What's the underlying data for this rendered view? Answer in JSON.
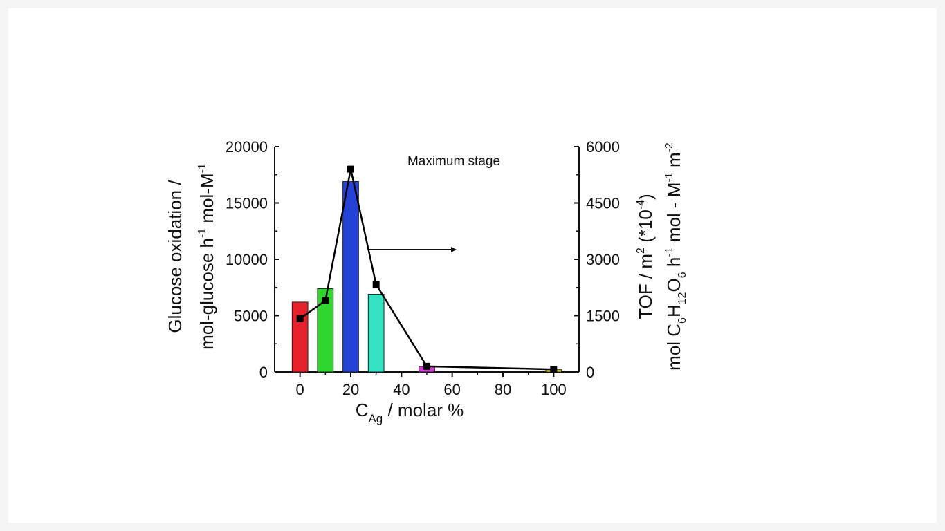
{
  "chart_data": {
    "type": "bar+line",
    "annotation": "Maximum stage",
    "xlabel": {
      "main": "C",
      "sub": "Ag",
      "tail": " / molar %"
    },
    "x_ticks": [
      0,
      20,
      40,
      60,
      80,
      100
    ],
    "xlim": [
      -10,
      110
    ],
    "ylabel_left": {
      "line1": "Glucose oxidation /",
      "line2": {
        "a": "mol-glucose h",
        "sup1": "-1",
        "b": " mol-M",
        "sup2": "-1"
      }
    },
    "ylim_left": [
      0,
      20000
    ],
    "y_ticks_left": [
      0,
      5000,
      10000,
      15000,
      20000
    ],
    "ylabel_right": {
      "line1": {
        "a": "TOF / m",
        "sup1": "2",
        "b": " (*10",
        "sup2": "-4",
        "c": ")"
      },
      "line2": {
        "a": "mol C",
        "sub1": "6",
        "b": "H",
        "sub2": "12",
        "c": "O",
        "sub3": "6",
        "d": " h",
        "sup1": "-1",
        "e": " mol - M",
        "sup2": "-1",
        "f": " m",
        "sup3": "-2"
      }
    },
    "ylim_right": [
      0,
      6000
    ],
    "y_ticks_right": [
      0,
      1500,
      3000,
      4500,
      6000
    ],
    "bars": {
      "name": "Glucose oxidation",
      "x": [
        0,
        10,
        20,
        30,
        50,
        100
      ],
      "values": [
        6200,
        7400,
        16900,
        6900,
        500,
        200
      ],
      "colors": [
        "#e8222a",
        "#2ed62e",
        "#2443d6",
        "#35e2c2",
        "#d43bd6",
        "#eeea44"
      ]
    },
    "line": {
      "name": "TOF",
      "x": [
        0,
        10,
        20,
        30,
        50,
        100
      ],
      "values": [
        1420,
        1900,
        5400,
        2330,
        150,
        70
      ],
      "color": "#000000"
    }
  }
}
